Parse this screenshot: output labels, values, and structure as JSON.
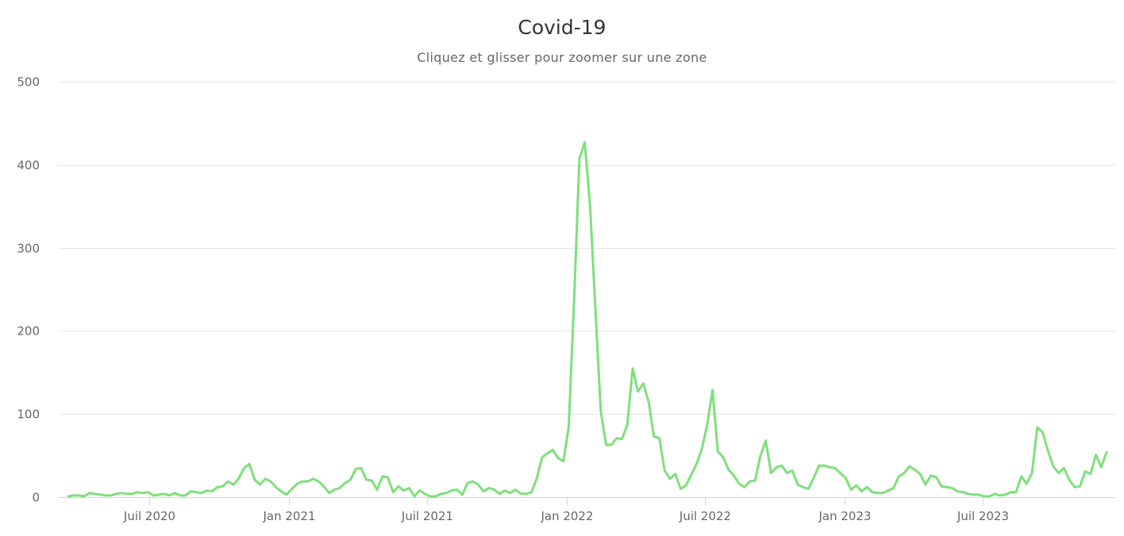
{
  "chart": {
    "title": "Covid-19",
    "subtitle": "Cliquez et glisser pour zoomer sur une zone",
    "line_color": "#7ee07a",
    "grid_color": "#e6e6e6",
    "axis_color": "#ccd6eb"
  },
  "chart_data": {
    "type": "line",
    "title": "Covid-19",
    "subtitle": "Cliquez et glisser pour zoomer sur une zone",
    "xlabel": "",
    "ylabel": "",
    "ylim": [
      0,
      500
    ],
    "yticks": [
      0,
      100,
      200,
      300,
      400,
      500
    ],
    "xticks": [
      "Juil 2020",
      "Jan 2021",
      "Juil 2021",
      "Jan 2022",
      "Juil 2022",
      "Jan 2023",
      "Juil 2023"
    ],
    "grid": true,
    "legend": "none",
    "x_frequency": "weekly",
    "x_start_approx": "2020-03",
    "x_end_approx": "2023-11",
    "series": [
      {
        "name": "Covid-19",
        "values": [
          1,
          2,
          2,
          1,
          5,
          4,
          3,
          2,
          2,
          4,
          5,
          4,
          4,
          6,
          5,
          6,
          2,
          3,
          4,
          2,
          5,
          2,
          2,
          7,
          6,
          5,
          8,
          7,
          12,
          13,
          19,
          15,
          22,
          35,
          40,
          21,
          15,
          22,
          19,
          12,
          7,
          3,
          10,
          16,
          19,
          19,
          22,
          19,
          13,
          5,
          9,
          11,
          17,
          21,
          34,
          35,
          21,
          20,
          9,
          25,
          24,
          6,
          13,
          8,
          11,
          1,
          8,
          4,
          1,
          1,
          4,
          5,
          8,
          9,
          3,
          17,
          19,
          15,
          7,
          11,
          9,
          4,
          8,
          5,
          9,
          4,
          4,
          6,
          23,
          48,
          53,
          57,
          47,
          43,
          85,
          236,
          407,
          427,
          350,
          226,
          104,
          63,
          63,
          71,
          70,
          87,
          155,
          127,
          137,
          115,
          73,
          71,
          32,
          22,
          28,
          10,
          14,
          27,
          40,
          58,
          87,
          129,
          55,
          48,
          33,
          26,
          16,
          12,
          19,
          20,
          50,
          68,
          29,
          36,
          38,
          29,
          32,
          15,
          12,
          10,
          23,
          38,
          38,
          36,
          35,
          29,
          23,
          9,
          14,
          7,
          12,
          6,
          5,
          5,
          8,
          11,
          25,
          29,
          37,
          33,
          28,
          15,
          26,
          24,
          13,
          12,
          11,
          7,
          6,
          4,
          3,
          3,
          1,
          1,
          4,
          2,
          3,
          6,
          6,
          25,
          16,
          29,
          84,
          78,
          56,
          37,
          29,
          35,
          21,
          12,
          13,
          31,
          28,
          51,
          36,
          54
        ]
      }
    ]
  }
}
